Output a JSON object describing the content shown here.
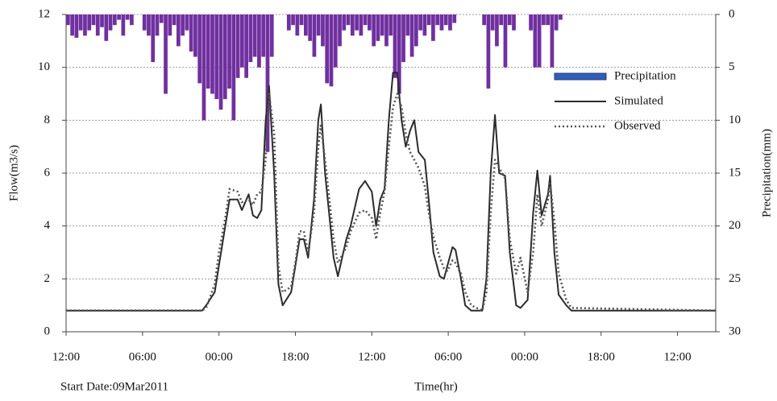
{
  "chart_data": {
    "type": "combo",
    "ylabel": "Flow(m3/s)",
    "y2label": "Precipitation(mm)",
    "xlabel": "Time(hr)",
    "annotation": "Start Date:09Mar2011",
    "xlim": [
      0,
      153
    ],
    "xticks": [
      {
        "value": 0,
        "label": "12:00"
      },
      {
        "value": 18,
        "label": "06:00"
      },
      {
        "value": 36,
        "label": "00:00"
      },
      {
        "value": 54,
        "label": "18:00"
      },
      {
        "value": 72,
        "label": "12:00"
      },
      {
        "value": 90,
        "label": "06:00"
      },
      {
        "value": 108,
        "label": "00:00"
      },
      {
        "value": 126,
        "label": "18:00"
      },
      {
        "value": 144,
        "label": "12:00"
      }
    ],
    "ylim": [
      0,
      12
    ],
    "yticks": [
      0,
      2,
      4,
      6,
      8,
      10,
      12
    ],
    "y2lim": [
      0,
      30
    ],
    "y2ticks": [
      0,
      5,
      10,
      15,
      20,
      25,
      30
    ],
    "y2_inverted": true,
    "grid": true,
    "legend": "upper right",
    "series": [
      {
        "name": "Precipitation",
        "type": "bar",
        "axis": "y2",
        "color": "#7030a0",
        "legend_color": "#2e5fb8",
        "x": [
          0,
          1,
          2,
          3,
          4,
          5,
          6,
          7,
          8,
          9,
          10,
          11,
          12,
          13,
          14,
          15,
          18,
          19,
          20,
          21,
          22,
          23,
          24,
          25,
          26,
          27,
          28,
          29,
          30,
          31,
          32,
          33,
          34,
          35,
          36,
          37,
          38,
          39,
          40,
          41,
          42,
          43,
          44,
          45,
          46,
          47,
          48,
          52,
          53,
          54,
          55,
          56,
          57,
          58,
          59,
          60,
          61,
          62,
          63,
          64,
          65,
          66,
          67,
          68,
          69,
          70,
          71,
          72,
          73,
          74,
          75,
          76,
          77,
          78,
          79,
          80,
          81,
          82,
          83,
          84,
          85,
          86,
          87,
          88,
          89,
          90,
          91,
          98,
          99,
          100,
          101,
          102,
          103,
          104,
          105,
          109,
          110,
          111,
          112,
          113,
          114,
          115,
          116
        ],
        "values": [
          1,
          2,
          2.2,
          1.5,
          2,
          1.5,
          1,
          2,
          1.2,
          2.5,
          1.5,
          1,
          0.5,
          2,
          0.5,
          1,
          1.5,
          2,
          4.5,
          2,
          0.8,
          7.5,
          2,
          1,
          3,
          2,
          1.5,
          3.5,
          4,
          6.5,
          10,
          7,
          7.5,
          8,
          9,
          8,
          7,
          10,
          6,
          5,
          6,
          4.5,
          4,
          5,
          4,
          13,
          4,
          1.5,
          1,
          2,
          1,
          2,
          2.5,
          4,
          2,
          3,
          6.5,
          6.8,
          5,
          3,
          1.5,
          1,
          2,
          1.5,
          2,
          1,
          1.5,
          3,
          2.5,
          2,
          3,
          2,
          6,
          7.5,
          4.5,
          2,
          4,
          3,
          1.5,
          2,
          1,
          2.5,
          1,
          1.5,
          1,
          1.5,
          0.8,
          1,
          7,
          1.5,
          3,
          1,
          5,
          1,
          1.5,
          1.5,
          5,
          5,
          1,
          1,
          5,
          1.5,
          0.5
        ]
      },
      {
        "name": "Simulated",
        "type": "line",
        "axis": "y",
        "color": "#2b2b2b",
        "dash": "solid",
        "x": [
          0,
          32,
          33,
          35,
          36,
          37.5,
          38.5,
          40.4,
          41.4,
          43,
          44,
          45,
          46,
          47,
          47.8,
          49,
          50,
          51,
          53,
          54,
          55,
          56,
          57,
          58.4,
          59.4,
          60,
          61,
          63,
          64,
          66,
          67,
          69,
          70.4,
          72,
          73,
          74,
          75,
          76,
          77,
          78,
          79,
          80,
          81,
          82,
          83,
          84.5,
          85.4,
          86.5,
          88,
          89,
          89.8,
          91,
          91.7,
          93,
          94,
          95.4,
          98,
          99,
          100,
          101,
          102,
          103.4,
          104.5,
          106,
          107,
          108.7,
          110,
          111,
          112,
          113.5,
          114,
          115,
          116,
          117.8,
          119,
          153
        ],
        "values": [
          0.8,
          0.8,
          1,
          1.5,
          2.5,
          4,
          5,
          5,
          4.6,
          5.2,
          4.4,
          4.3,
          4.6,
          8,
          9.3,
          6,
          1.8,
          1,
          1.5,
          2.5,
          3.5,
          3.5,
          2.8,
          5,
          8,
          8.6,
          6,
          2.8,
          2.1,
          3.5,
          4,
          5.4,
          5.7,
          5.3,
          4,
          5,
          5.4,
          8,
          9.8,
          9.8,
          8,
          7,
          7.6,
          8,
          6.8,
          6.5,
          5,
          3,
          2.1,
          2,
          2.5,
          3.2,
          3.1,
          2,
          1,
          0.8,
          0.8,
          2,
          6,
          8.2,
          6,
          5.9,
          3,
          1,
          0.9,
          1.2,
          4.5,
          6.1,
          4.4,
          5.2,
          5.9,
          3,
          1.4,
          1,
          0.8,
          0.8
        ]
      },
      {
        "name": "Observed",
        "type": "line",
        "axis": "y",
        "color": "#555555",
        "dash": "dotted",
        "x": [
          0,
          32,
          33,
          35,
          36,
          37.5,
          38.5,
          40.4,
          41.4,
          43,
          44,
          45,
          46,
          47,
          47.8,
          49,
          50,
          51,
          53,
          54,
          55,
          56,
          57,
          58.4,
          59.4,
          60,
          61,
          63,
          64,
          66,
          67,
          69,
          70.4,
          72,
          73,
          74,
          75,
          76,
          77,
          78,
          79,
          80,
          81,
          82,
          83,
          84.5,
          85.4,
          86.5,
          88,
          89,
          89.8,
          91,
          91.7,
          93,
          94,
          95.4,
          98,
          99,
          100,
          101,
          102,
          103.4,
          104.5,
          106,
          107,
          108.7,
          110,
          111,
          112,
          113.5,
          114,
          115,
          116,
          117.8,
          119,
          153
        ],
        "values": [
          0.8,
          0.8,
          0.9,
          1.8,
          3,
          4.3,
          5.4,
          5.3,
          4.9,
          5,
          4.8,
          5.2,
          5.3,
          6.5,
          9,
          7.5,
          2.5,
          1.5,
          1.7,
          2.6,
          3.8,
          3.8,
          3,
          4.5,
          7,
          7.8,
          6.5,
          3.5,
          2.6,
          3.2,
          3.8,
          4.5,
          4.6,
          4.3,
          3.5,
          4.5,
          5.3,
          7,
          8.5,
          9,
          8.5,
          7.5,
          6.8,
          6.5,
          6.2,
          5.5,
          4.5,
          3.6,
          2.8,
          2.4,
          2.3,
          2.7,
          2.6,
          2.2,
          1.5,
          1,
          0.8,
          1.5,
          4.5,
          6.5,
          6.2,
          5.8,
          3.5,
          2.2,
          2.8,
          1.5,
          3,
          5.2,
          4,
          5,
          5.6,
          4.2,
          2.2,
          1.2,
          0.9,
          0.8
        ]
      }
    ]
  }
}
